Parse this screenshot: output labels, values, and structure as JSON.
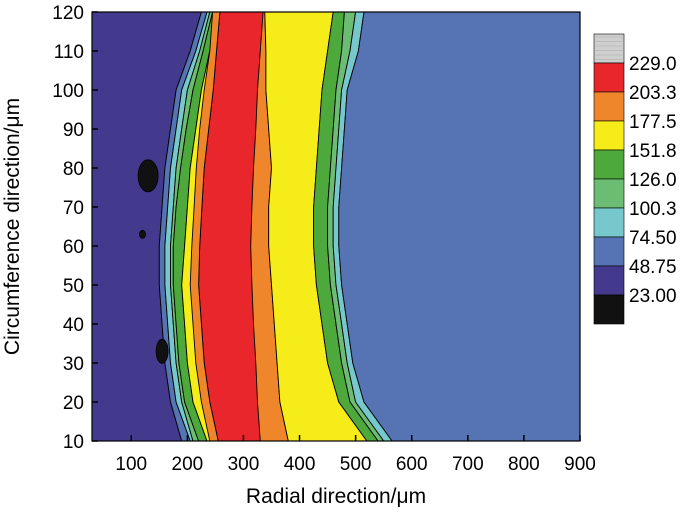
{
  "chart_data": {
    "type": "contour",
    "xlabel": "Radial direction/μm",
    "ylabel": "Circumference direction/μm",
    "xlim": [
      30,
      900
    ],
    "ylim": [
      10,
      120
    ],
    "x_ticks": [
      100,
      200,
      300,
      400,
      500,
      600,
      700,
      800,
      900
    ],
    "y_ticks": [
      10,
      20,
      30,
      40,
      50,
      60,
      70,
      80,
      90,
      100,
      110,
      120
    ],
    "legend_placement": "right",
    "legend": [
      {
        "label": "229.0",
        "color": "#cfcfcf"
      },
      {
        "label": "203.3",
        "color": "#e8262b"
      },
      {
        "label": "177.5",
        "color": "#f0862b"
      },
      {
        "label": "151.8",
        "color": "#f6ec1a"
      },
      {
        "label": "126.0",
        "color": "#4ea93c"
      },
      {
        "label": "100.3",
        "color": "#6cbc73"
      },
      {
        "label": "74.50",
        "color": "#76c8cc"
      },
      {
        "label": "48.75",
        "color": "#5673b3"
      },
      {
        "label": "23.00",
        "color": "#433a8e"
      },
      {
        "label": "",
        "color": "#111111"
      }
    ],
    "band_edges": {
      "y_levels": [
        10,
        20,
        30,
        40,
        50,
        60,
        70,
        80,
        90,
        100,
        110,
        120
      ],
      "b23_to_48": [
        190,
        170,
        160,
        155,
        150,
        150,
        155,
        160,
        170,
        180,
        205,
        225
      ],
      "b48_to_74": [
        205,
        180,
        170,
        165,
        160,
        160,
        165,
        170,
        180,
        190,
        215,
        235
      ],
      "b74_to_100": [
        210,
        190,
        180,
        175,
        170,
        170,
        175,
        180,
        190,
        200,
        222,
        240
      ],
      "b100_to_126": [
        220,
        195,
        185,
        180,
        175,
        175,
        180,
        188,
        198,
        210,
        228,
        245
      ],
      "b126_to_151": [
        235,
        210,
        200,
        195,
        190,
        195,
        200,
        205,
        215,
        225,
        240,
        250
      ],
      "b151_to_177": [
        260,
        245,
        235,
        230,
        225,
        228,
        232,
        238,
        245,
        255,
        265,
        270
      ],
      "b177_to_151": [
        380,
        365,
        360,
        355,
        350,
        345,
        345,
        350,
        345,
        340,
        340,
        338
      ],
      "b151_to_126": [
        520,
        470,
        450,
        440,
        430,
        425,
        425,
        430,
        435,
        440,
        450,
        460
      ],
      "b126_to_100": [
        540,
        490,
        475,
        465,
        455,
        450,
        450,
        455,
        460,
        465,
        475,
        480
      ],
      "b100_to_74": [
        550,
        500,
        485,
        475,
        465,
        460,
        460,
        465,
        470,
        475,
        490,
        500
      ],
      "b74_to_48": [
        565,
        515,
        495,
        485,
        475,
        470,
        470,
        475,
        480,
        485,
        505,
        515
      ]
    }
  }
}
